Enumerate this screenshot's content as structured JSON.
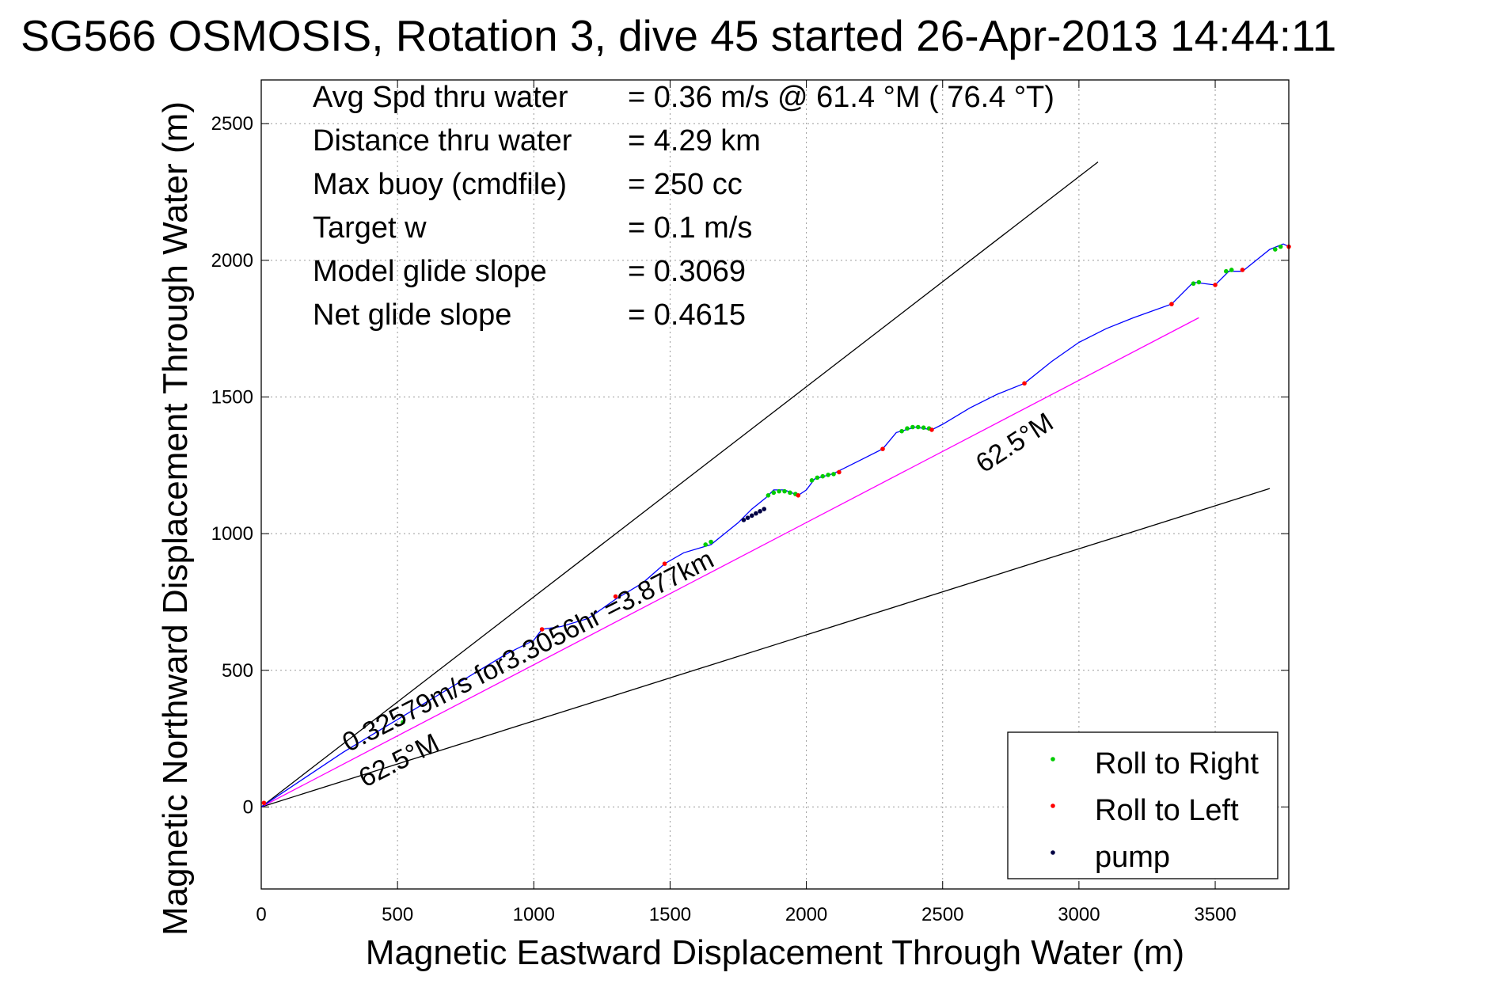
{
  "chart_data": {
    "type": "scatter",
    "title": "SG566 OSMOSIS, Rotation 3, dive 45 started 26-Apr-2013 14:44:11",
    "xlabel": "Magnetic Eastward Displacement Through Water (m)",
    "ylabel": "Magnetic Northward Displacement Through Water (m)",
    "xlim": [
      0,
      3770
    ],
    "ylim": [
      -300,
      2660
    ],
    "xticks": [
      0,
      500,
      1000,
      1500,
      2000,
      2500,
      3000,
      3500
    ],
    "yticks": [
      0,
      500,
      1000,
      1500,
      2000,
      2500
    ],
    "xtick_labels": [
      "0",
      "500",
      "1000",
      "1500",
      "2000",
      "2500",
      "3000",
      "3500"
    ],
    "ytick_labels": [
      "0",
      "500",
      "1000",
      "1500",
      "2000",
      "2500"
    ],
    "grid": true,
    "legend_position": "bottom-right",
    "stats": [
      {
        "label": "Avg Spd thru water",
        "value": "=  0.36 m/s @  61.4 °M ( 76.4 °T)"
      },
      {
        "label": "Distance thru water",
        "value": "=  4.29 km"
      },
      {
        "label": "Max buoy (cmdfile)",
        "value": "= 250 cc"
      },
      {
        "label": "Target w",
        "value": "= 0.1 m/s"
      },
      {
        "label": "Model glide slope",
        "value": "= 0.3069"
      },
      {
        "label": "Net glide slope",
        "value": "= 0.4615"
      }
    ],
    "reference_lines": [
      {
        "x": [
          0,
          3070
        ],
        "y": [
          0,
          2360
        ],
        "color": "#000000"
      },
      {
        "x": [
          0,
          3700
        ],
        "y": [
          0,
          1165
        ],
        "color": "#000000"
      },
      {
        "x": [
          0,
          3440
        ],
        "y": [
          0,
          1790
        ],
        "color": "#ff00ff"
      }
    ],
    "track": {
      "color": "#0000ff",
      "x": [
        0,
        150,
        300,
        400,
        500,
        600,
        700,
        800,
        900,
        1000,
        1030,
        1100,
        1200,
        1300,
        1400,
        1480,
        1550,
        1650,
        1750,
        1800,
        1850,
        1880,
        1920,
        1970,
        2000,
        2030,
        2100,
        2200,
        2280,
        2330,
        2400,
        2460,
        2500,
        2600,
        2700,
        2800,
        2900,
        3000,
        3100,
        3200,
        3340,
        3420,
        3500,
        3550,
        3600,
        3700,
        3750,
        3770
      ],
      "y": [
        0,
        100,
        200,
        260,
        320,
        380,
        440,
        500,
        560,
        610,
        650,
        660,
        690,
        760,
        820,
        890,
        930,
        960,
        1040,
        1090,
        1130,
        1160,
        1160,
        1140,
        1160,
        1200,
        1220,
        1270,
        1310,
        1370,
        1390,
        1380,
        1400,
        1460,
        1510,
        1550,
        1630,
        1700,
        1750,
        1790,
        1840,
        1920,
        1910,
        1960,
        1960,
        2040,
        2060,
        2050
      ]
    },
    "series": [
      {
        "name": "Roll to Right",
        "color": "#00cc00",
        "x": [
          520,
          1630,
          1650,
          1860,
          1880,
          1900,
          1920,
          1940,
          1960,
          2020,
          2040,
          2060,
          2080,
          2100,
          2350,
          2370,
          2390,
          2410,
          2430,
          2450,
          3420,
          3440,
          3540,
          3560,
          3720,
          3740
        ],
        "y": [
          310,
          960,
          970,
          1140,
          1150,
          1155,
          1155,
          1150,
          1145,
          1195,
          1205,
          1210,
          1215,
          1218,
          1375,
          1385,
          1390,
          1390,
          1388,
          1385,
          1915,
          1920,
          1960,
          1965,
          2040,
          2050
        ]
      },
      {
        "name": "Roll to Left",
        "color": "#ff0000",
        "x": [
          10,
          1030,
          1300,
          1480,
          1970,
          2120,
          2280,
          2460,
          2800,
          3340,
          3500,
          3600,
          3770
        ],
        "y": [
          15,
          650,
          770,
          890,
          1140,
          1225,
          1310,
          1380,
          1550,
          1840,
          1910,
          1965,
          2050
        ]
      },
      {
        "name": "pump",
        "color": "#000044",
        "x": [
          1770,
          1785,
          1800,
          1815,
          1830,
          1845
        ],
        "y": [
          1050,
          1058,
          1066,
          1074,
          1082,
          1090
        ]
      }
    ],
    "annotations": [
      {
        "text": "62.5°M",
        "x": 2650,
        "y": 1220,
        "angle": -33
      },
      {
        "text": "0.32579m/s for3.3056hr =3.877km",
        "x": 320,
        "y": 200,
        "angle": -27
      },
      {
        "text": "62.5°M",
        "x": 380,
        "y": 70,
        "angle": -27
      }
    ]
  }
}
